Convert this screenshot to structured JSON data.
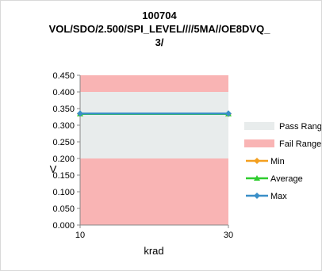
{
  "chart_data": {
    "type": "line",
    "title_lines": [
      "100704",
      "VOL/SDO/2.500/SPI_LEVEL////5MA//OE8DVQ_",
      "3/"
    ],
    "xlabel": "krad",
    "ylabel": "V",
    "x": [
      10,
      30
    ],
    "xticks": [
      "10",
      "30"
    ],
    "ylim": [
      0,
      0.45
    ],
    "yticks": [
      "0.000",
      "0.050",
      "0.100",
      "0.150",
      "0.200",
      "0.250",
      "0.300",
      "0.350",
      "0.400",
      "0.450"
    ],
    "bands": [
      {
        "name": "Fail Range",
        "from": 0.0,
        "to": 0.2,
        "color": "#f9b4b4"
      },
      {
        "name": "Pass Range",
        "from": 0.2,
        "to": 0.4,
        "color": "#e8ecec"
      },
      {
        "name": "Fail Range",
        "from": 0.4,
        "to": 0.45,
        "color": "#f9b4b4"
      }
    ],
    "series": [
      {
        "name": "Min",
        "values": [
          0.334,
          0.334
        ],
        "color": "#f4a020",
        "marker": "diamond"
      },
      {
        "name": "Average",
        "values": [
          0.334,
          0.334
        ],
        "color": "#2ecc2e",
        "marker": "triangle"
      },
      {
        "name": "Max",
        "values": [
          0.335,
          0.335
        ],
        "color": "#3a8fc8",
        "marker": "diamond"
      }
    ],
    "legend": [
      {
        "name": "Pass Range",
        "kind": "band",
        "color": "#e8ecec"
      },
      {
        "name": "Fail Range",
        "kind": "band",
        "color": "#f9b4b4"
      },
      {
        "name": "Min",
        "kind": "line",
        "color": "#f4a020",
        "marker": "diamond"
      },
      {
        "name": "Average",
        "kind": "line",
        "color": "#2ecc2e",
        "marker": "triangle"
      },
      {
        "name": "Max",
        "kind": "line",
        "color": "#3a8fc8",
        "marker": "diamond"
      }
    ],
    "legend_position": "right",
    "grid": false
  }
}
